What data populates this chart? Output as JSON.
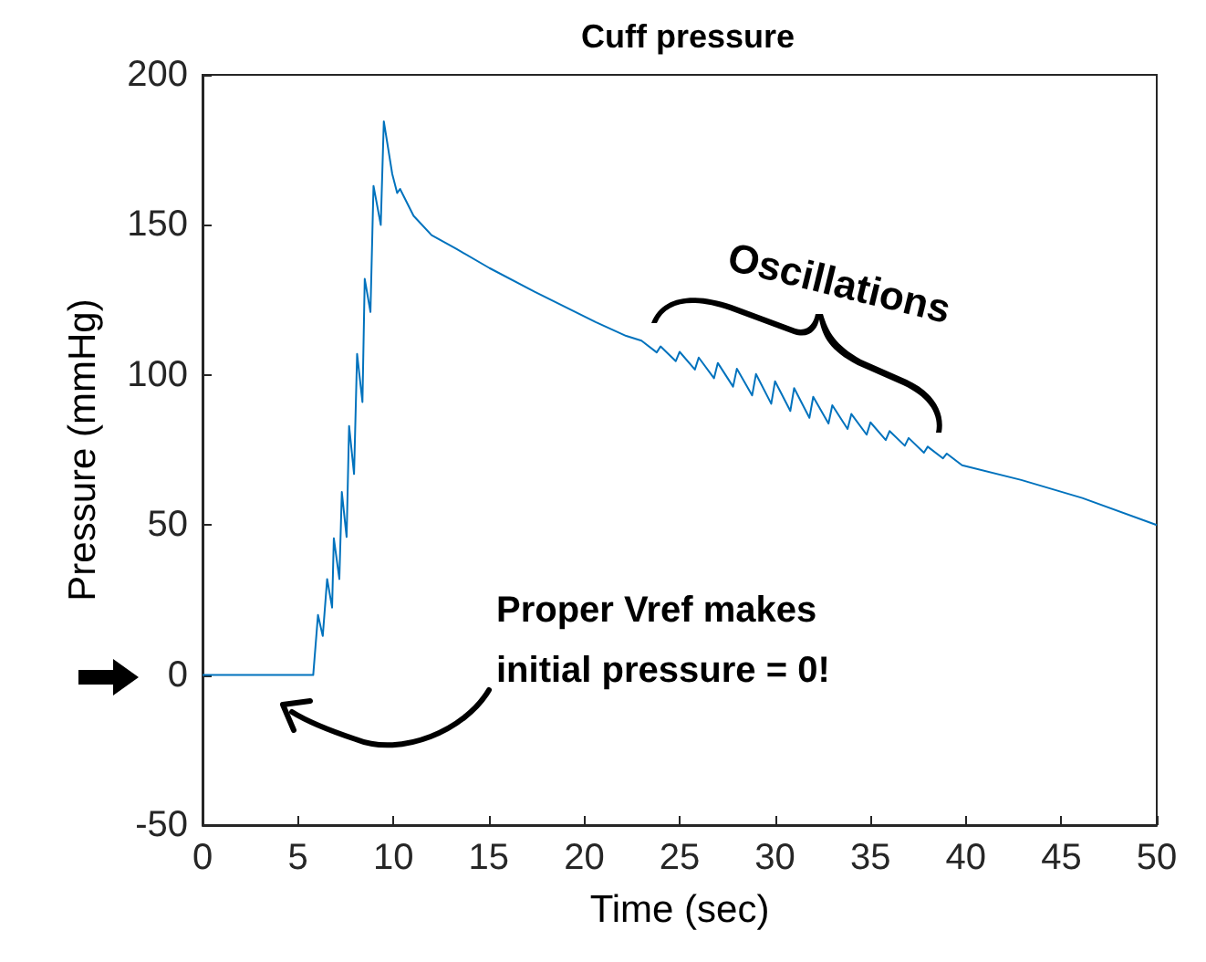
{
  "chart_data": {
    "type": "line",
    "title": "Cuff pressure",
    "xlabel": "Time (sec)",
    "ylabel": "Pressure (mmHg)",
    "annotations": [
      "Oscillations",
      "Proper Vref makes\ninitial pressure = 0!"
    ],
    "xlim": [
      0,
      50
    ],
    "xticks": [
      0,
      5,
      10,
      15,
      20,
      25,
      30,
      35,
      40,
      45,
      50
    ],
    "ylim": [
      -50,
      200
    ],
    "yticks": [
      -50,
      0,
      50,
      100,
      150,
      200
    ],
    "grid": false,
    "marker": "none",
    "line_style": "solid",
    "series": [
      {
        "color": "#0072bd",
        "x": [
          0,
          5.8,
          6.05,
          6.3,
          6.53,
          6.79,
          6.88,
          7.17,
          7.3,
          7.55,
          7.68,
          7.94,
          8.1,
          8.38,
          8.5,
          8.8,
          8.96,
          9.34,
          9.5,
          9.94,
          10.2,
          10.35,
          11.06,
          12.0,
          13.3,
          15.04,
          17.4,
          20.6,
          22.2,
          23,
          23.8,
          24,
          24.8,
          25,
          25.8,
          26,
          26.8,
          27,
          27.8,
          28,
          28.8,
          29,
          29.8,
          30,
          30.8,
          31,
          31.8,
          32,
          32.8,
          33,
          33.8,
          34,
          34.8,
          35,
          35.8,
          36,
          36.8,
          37,
          37.8,
          38,
          38.8,
          39,
          39.8,
          42.9,
          46.1,
          50
        ],
        "values": [
          0,
          0,
          20,
          13,
          32,
          22.5,
          45.6,
          32,
          61,
          46,
          83,
          67,
          107,
          91,
          132,
          121,
          163,
          150,
          184.5,
          167,
          160.6,
          162,
          153,
          146.6,
          142,
          135.6,
          127.7,
          117.6,
          113,
          111.4,
          107.5,
          109.5,
          104.6,
          107.7,
          101.8,
          105.8,
          98.9,
          104,
          96.1,
          102.1,
          93.2,
          100.3,
          90.4,
          97.9,
          88,
          95.6,
          85.7,
          92.7,
          83.8,
          89.9,
          82,
          87,
          80.1,
          84.2,
          78.3,
          81.3,
          76.4,
          79,
          74.1,
          76.1,
          72.2,
          73.8,
          69.9,
          65,
          59,
          50
        ]
      }
    ]
  }
}
